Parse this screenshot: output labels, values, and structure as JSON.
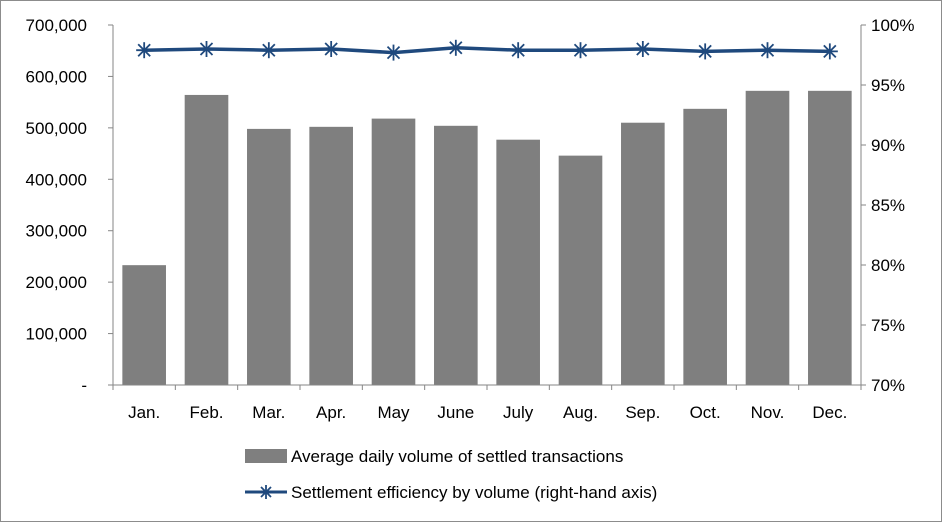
{
  "chart_data": {
    "type": "bar",
    "title": "",
    "categories": [
      "Jan.",
      "Feb.",
      "Mar.",
      "Apr.",
      "May",
      "June",
      "July",
      "Aug.",
      "Sep.",
      "Oct.",
      "Nov.",
      "Dec."
    ],
    "series": [
      {
        "name": "Average daily volume of settled transactions",
        "type": "bar",
        "axis": "left",
        "color": "#7f7f7f",
        "values": [
          233000,
          564000,
          498000,
          502000,
          518000,
          504000,
          477000,
          446000,
          510000,
          537000,
          572000,
          572000
        ]
      },
      {
        "name": "Settlement efficiency by volume (right-hand axis)",
        "type": "line",
        "axis": "right",
        "color": "#1f497d",
        "marker": "asterisk",
        "values": [
          97.9,
          98.0,
          97.9,
          98.0,
          97.7,
          98.1,
          97.9,
          97.9,
          98.0,
          97.8,
          97.9,
          97.8
        ]
      }
    ],
    "y_left": {
      "ylim": [
        0,
        700000
      ],
      "tick_labels": [
        "-",
        "100,000",
        "200,000",
        "300,000",
        "400,000",
        "500,000",
        "600,000",
        "700,000"
      ]
    },
    "y_right": {
      "ylim": [
        70,
        100
      ],
      "tick_labels": [
        "70%",
        "75%",
        "80%",
        "85%",
        "90%",
        "95%",
        "100%"
      ]
    },
    "grid": false,
    "legend_position": "bottom"
  }
}
